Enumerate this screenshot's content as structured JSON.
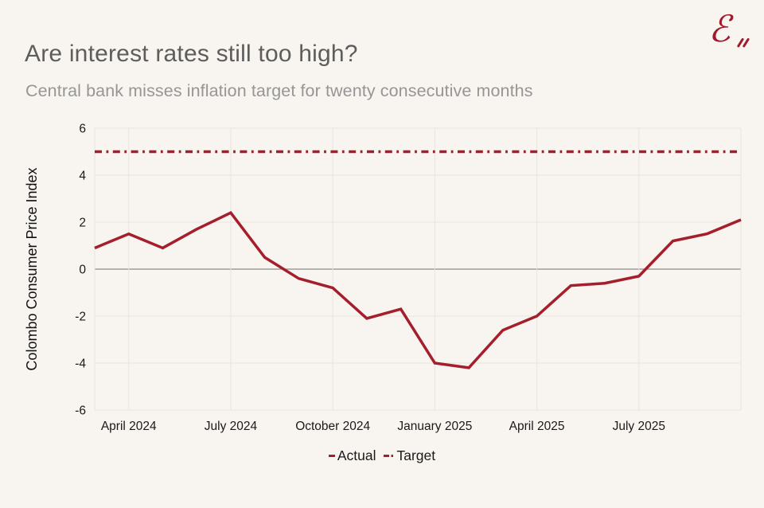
{
  "colors": {
    "background": "#f8f4f0",
    "accent_red": "#a51e2c",
    "grid_line": "#e9e4df",
    "zero_line": "#8c8c8c",
    "title_text": "#5d5d5d",
    "subtitle_text": "#969696",
    "axis_text": "#1a1a1a"
  },
  "header": {
    "title": "Are interest rates still too high?",
    "subtitle": "Central bank misses inflation target for twenty consecutive months",
    "logo_glyph": "ℰ"
  },
  "chart_data": {
    "type": "line",
    "title": "",
    "xlabel": "",
    "ylabel": "Colombo Consumer Price Index",
    "ylim": [
      -6,
      6
    ],
    "yticks": [
      6,
      4,
      2,
      0,
      -2,
      -4,
      -6
    ],
    "grid": true,
    "legend_position": "bottom-center",
    "x": [
      "Mar 2024",
      "Apr 2024",
      "May 2024",
      "Jun 2024",
      "Jul 2024",
      "Aug 2024",
      "Sep 2024",
      "Oct 2024",
      "Nov 2024",
      "Dec 2024",
      "Jan 2025",
      "Feb 2025",
      "Mar 2025",
      "Apr 2025",
      "May 2025",
      "Jun 2025",
      "Jul 2025",
      "Aug 2025",
      "Sep 2025",
      "Oct 2025"
    ],
    "xticks": [
      {
        "index": 1,
        "label": "April 2024"
      },
      {
        "index": 4,
        "label": "July 2024"
      },
      {
        "index": 7,
        "label": "October 2024"
      },
      {
        "index": 10,
        "label": "January 2025"
      },
      {
        "index": 13,
        "label": "April 2025"
      },
      {
        "index": 16,
        "label": "July 2025"
      }
    ],
    "series": [
      {
        "name": "Actual",
        "style": "solid",
        "color": "#a51e2c",
        "values": [
          0.9,
          1.5,
          0.9,
          1.7,
          2.4,
          0.5,
          -0.4,
          -0.8,
          -2.1,
          -1.7,
          -4.0,
          -4.2,
          -2.6,
          -2.0,
          -0.7,
          -0.6,
          -0.3,
          1.2,
          1.5,
          2.1
        ]
      },
      {
        "name": "Target",
        "style": "dash-dot",
        "color": "#a51e2c",
        "value": 5.0
      }
    ]
  }
}
